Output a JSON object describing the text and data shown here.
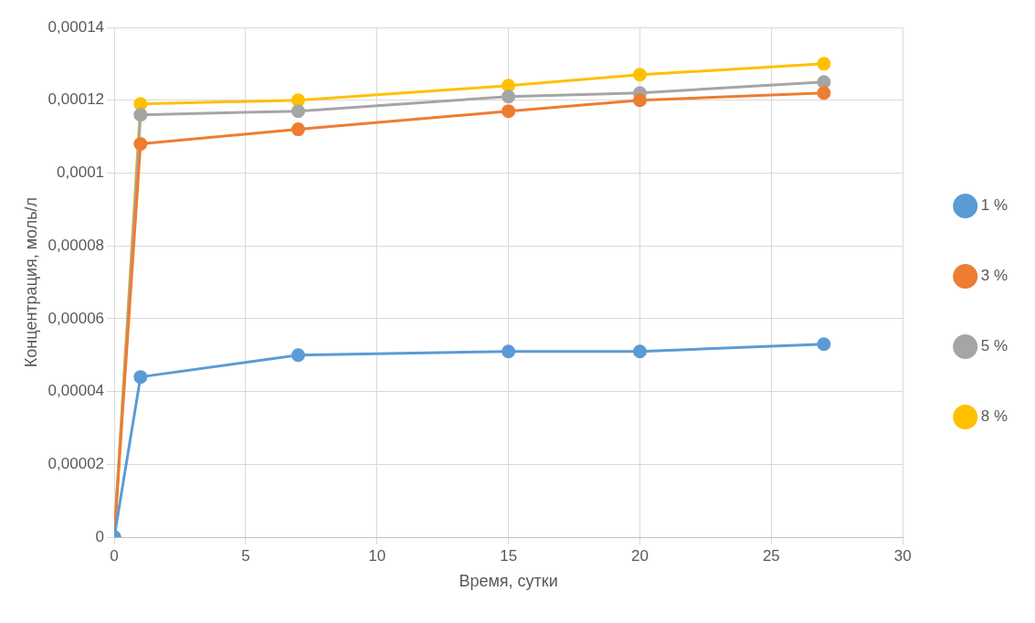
{
  "chart_data": {
    "type": "line",
    "xlabel": "Время, сутки",
    "ylabel": "Концентрация, моль/л",
    "x": [
      0,
      1,
      7,
      15,
      20,
      27
    ],
    "series": [
      {
        "name": "1 %",
        "color": "#5b9bd5",
        "values": [
          0,
          4.4e-05,
          5e-05,
          5.1e-05,
          5.1e-05,
          5.3e-05
        ]
      },
      {
        "name": "3 %",
        "color": "#ed7d31",
        "values": [
          0,
          0.000108,
          0.000112,
          0.000117,
          0.00012,
          0.000122
        ]
      },
      {
        "name": "5 %",
        "color": "#a5a5a5",
        "values": [
          0,
          0.000116,
          0.000117,
          0.000121,
          0.000122,
          0.000125
        ]
      },
      {
        "name": "8 %",
        "color": "#ffc000",
        "values": [
          0,
          0.000119,
          0.00012,
          0.000124,
          0.000127,
          0.00013
        ]
      }
    ],
    "xlim": [
      0,
      30
    ],
    "xticks": [
      0,
      5,
      10,
      15,
      20,
      25,
      30
    ],
    "ylim": [
      0,
      0.00014
    ],
    "yticks": [
      0,
      {
        "value": 2e-05,
        "label": "0,00002"
      },
      {
        "value": 4e-05,
        "label": "0,00004"
      },
      {
        "value": 6e-05,
        "label": "0,00006"
      },
      {
        "value": 8e-05,
        "label": "0,00008"
      },
      {
        "value": 0.0001,
        "label": "0,0001"
      },
      {
        "value": 0.00012,
        "label": "0,00012"
      },
      {
        "value": 0.00014,
        "label": "0,00014"
      }
    ],
    "grid": true,
    "legend": "right",
    "marker": "circle",
    "line_style": "solid"
  }
}
